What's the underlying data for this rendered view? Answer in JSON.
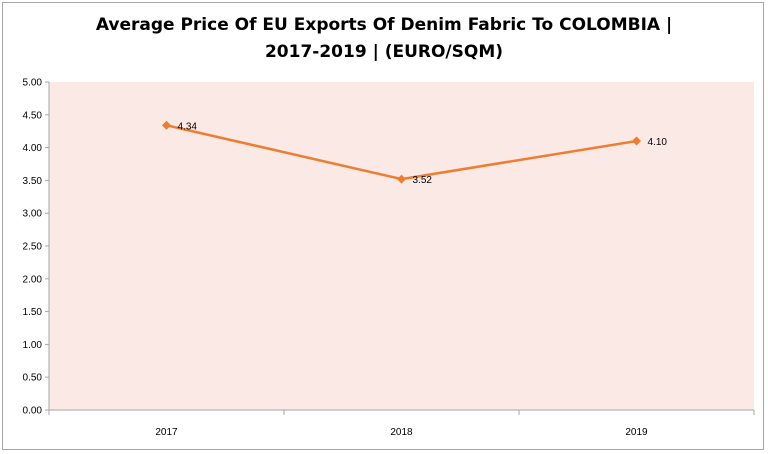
{
  "chart_data": {
    "type": "line",
    "title_line1": "Average Price Of EU Exports Of Denim Fabric To COLOMBIA |",
    "title_line2": "2017-2019 | (EURO/SQM)",
    "categories": [
      "2017",
      "2018",
      "2019"
    ],
    "series": [
      {
        "values": [
          4.34,
          3.52,
          4.1
        ],
        "labels": [
          "4.34",
          "3.52",
          "4.10"
        ]
      }
    ],
    "ylim": [
      0,
      5
    ],
    "yticks": [
      0,
      0.5,
      1,
      1.5,
      2,
      2.5,
      3,
      3.5,
      4,
      4.5,
      5
    ],
    "ytick_labels": [
      "0.00",
      "0.50",
      "1.00",
      "1.50",
      "2.00",
      "2.50",
      "3.00",
      "3.50",
      "4.00",
      "4.50",
      "5.00"
    ],
    "grid": false,
    "legend": "none",
    "colors": {
      "line": "#ed7d31",
      "plot_background": "#fbe9e5",
      "axis": "#a6a6a6"
    }
  }
}
